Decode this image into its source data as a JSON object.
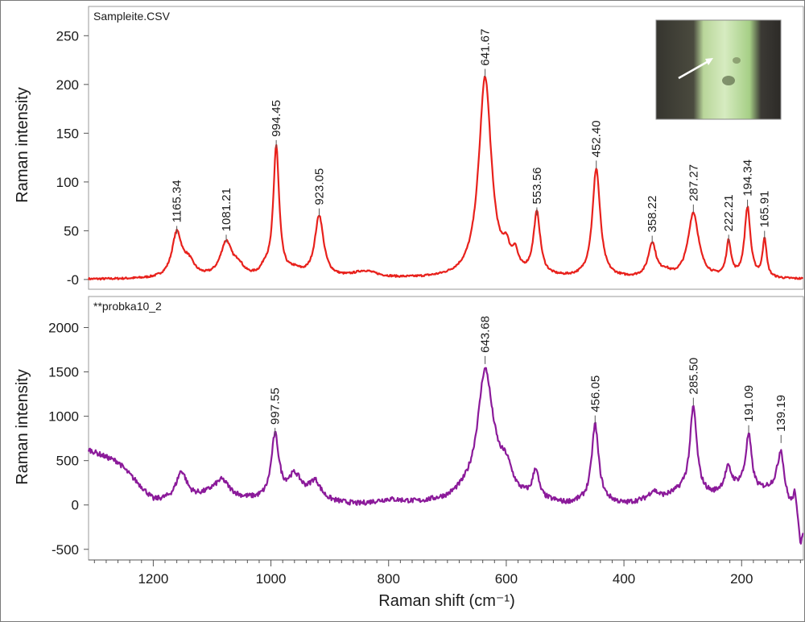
{
  "chart_data": {
    "type": "line",
    "x_axis": {
      "label": "Raman shift (cm⁻¹)",
      "range": [
        1310,
        95
      ],
      "reversed": true,
      "ticks": [
        1200,
        1000,
        800,
        600,
        400,
        200
      ]
    },
    "panels": [
      {
        "title": "Sampleite.CSV",
        "ylabel": "Raman intensity",
        "ylim": [
          -10,
          280
        ],
        "yticks": [
          0,
          50,
          100,
          150,
          200,
          250
        ],
        "yticklabels": [
          "-0",
          "50",
          "100",
          "150",
          "200",
          "250"
        ],
        "color": "#e8211c",
        "baseline": 0,
        "peaks": [
          {
            "x": 1160,
            "h": 45,
            "w": 10
          },
          {
            "x": 1140,
            "h": 15,
            "w": 12
          },
          {
            "x": 1076,
            "h": 36,
            "w": 12
          },
          {
            "x": 1055,
            "h": 10,
            "w": 10
          },
          {
            "x": 1010,
            "h": 8,
            "w": 8
          },
          {
            "x": 991,
            "h": 133,
            "w": 6
          },
          {
            "x": 960,
            "h": 6,
            "w": 15
          },
          {
            "x": 918,
            "h": 63,
            "w": 9
          },
          {
            "x": 840,
            "h": 7,
            "w": 25
          },
          {
            "x": 636,
            "h": 206,
            "w": 13
          },
          {
            "x": 600,
            "h": 20,
            "w": 7
          },
          {
            "x": 585,
            "h": 18,
            "w": 6
          },
          {
            "x": 548,
            "h": 64,
            "w": 7
          },
          {
            "x": 447,
            "h": 112,
            "w": 8
          },
          {
            "x": 352,
            "h": 35,
            "w": 8
          },
          {
            "x": 330,
            "h": 5,
            "w": 10
          },
          {
            "x": 282,
            "h": 67,
            "w": 11
          },
          {
            "x": 222,
            "h": 36,
            "w": 5
          },
          {
            "x": 190,
            "h": 72,
            "w": 6
          },
          {
            "x": 161,
            "h": 40,
            "w": 4
          }
        ],
        "labels": [
          {
            "text": "1165.34",
            "x": 1160,
            "y": 45
          },
          {
            "text": "1081.21",
            "x": 1076,
            "y": 36
          },
          {
            "text": "994.45",
            "x": 991,
            "y": 133
          },
          {
            "text": "923.05",
            "x": 918,
            "y": 63
          },
          {
            "text": "641.67",
            "x": 636,
            "y": 206
          },
          {
            "text": "553.56",
            "x": 548,
            "y": 64
          },
          {
            "text": "452.40",
            "x": 447,
            "y": 112
          },
          {
            "text": "358.22",
            "x": 352,
            "y": 35
          },
          {
            "text": "287.27",
            "x": 282,
            "y": 67
          },
          {
            "text": "222.21",
            "x": 222,
            "y": 36
          },
          {
            "text": "194.34",
            "x": 190,
            "y": 72
          },
          {
            "text": "165.91",
            "x": 161,
            "y": 40
          }
        ]
      },
      {
        "title": "**probka10_2",
        "ylabel": "Raman intensity",
        "ylim": [
          -620,
          2350
        ],
        "yticks": [
          -500,
          0,
          500,
          1000,
          1500,
          2000
        ],
        "yticklabels": [
          "-500",
          "0",
          "500",
          "1000",
          "1500",
          "2000"
        ],
        "color": "#8b1a9a",
        "baseline_points": [
          [
            1310,
            620
          ],
          [
            1260,
            480
          ],
          [
            1200,
            50
          ],
          [
            1150,
            40
          ],
          [
            1100,
            120
          ],
          [
            1050,
            60
          ],
          [
            1000,
            30
          ],
          [
            950,
            60
          ],
          [
            900,
            20
          ],
          [
            850,
            0
          ],
          [
            800,
            50
          ],
          [
            750,
            20
          ],
          [
            700,
            50
          ],
          [
            660,
            150
          ],
          [
            620,
            250
          ],
          [
            580,
            80
          ],
          [
            500,
            0
          ],
          [
            440,
            40
          ],
          [
            400,
            0
          ],
          [
            330,
            80
          ],
          [
            300,
            150
          ],
          [
            250,
            100
          ],
          [
            200,
            200
          ],
          [
            170,
            150
          ],
          [
            140,
            200
          ],
          [
            120,
            0
          ],
          [
            105,
            -100
          ],
          [
            95,
            -300
          ]
        ],
        "peaks": [
          {
            "x": 1152,
            "h": 330,
            "w": 11
          },
          {
            "x": 1083,
            "h": 170,
            "w": 14
          },
          {
            "x": 993,
            "h": 720,
            "w": 8
          },
          {
            "x": 960,
            "h": 250,
            "w": 14
          },
          {
            "x": 925,
            "h": 200,
            "w": 12
          },
          {
            "x": 636,
            "h": 1300,
            "w": 15
          },
          {
            "x": 600,
            "h": 220,
            "w": 12
          },
          {
            "x": 550,
            "h": 320,
            "w": 6
          },
          {
            "x": 449,
            "h": 860,
            "w": 7
          },
          {
            "x": 350,
            "h": 90,
            "w": 9
          },
          {
            "x": 282,
            "h": 960,
            "w": 7
          },
          {
            "x": 223,
            "h": 250,
            "w": 7
          },
          {
            "x": 188,
            "h": 600,
            "w": 6
          },
          {
            "x": 133,
            "h": 480,
            "w": 6
          },
          {
            "x": 110,
            "h": 200,
            "w": 3
          },
          {
            "x": 100,
            "h": -250,
            "w": 3
          }
        ],
        "labels": [
          {
            "text": "997.55",
            "x": 993,
            "y": 760
          },
          {
            "text": "643.68",
            "x": 636,
            "y": 1570
          },
          {
            "text": "456.05",
            "x": 449,
            "y": 900
          },
          {
            "text": "285.50",
            "x": 282,
            "y": 1100
          },
          {
            "text": "191.09",
            "x": 188,
            "y": 790
          },
          {
            "text": "139.19",
            "x": 133,
            "y": 680
          }
        ]
      }
    ],
    "inset": {
      "type": "microscope-photo",
      "colors": [
        "#3b3b35",
        "#cfe6b0",
        "#a7d38c",
        "#2e2b28"
      ]
    }
  }
}
